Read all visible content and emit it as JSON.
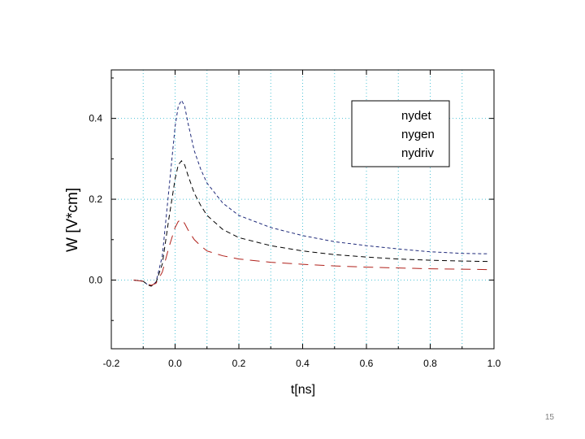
{
  "slide": {
    "page_number": "15"
  },
  "chart_data": {
    "type": "line",
    "title": "",
    "xlabel": "t[ns]",
    "ylabel": "W [V*cm]",
    "xlim": [
      -0.2,
      1.0
    ],
    "ylim": [
      -0.17,
      0.52
    ],
    "x_ticks": [
      "-0.2",
      "0.0",
      "0.2",
      "0.4",
      "0.6",
      "0.8",
      "1.0"
    ],
    "y_ticks": [
      "0.0",
      "0.2",
      "0.4"
    ],
    "x_tick_values": [
      -0.2,
      0.0,
      0.2,
      0.4,
      0.6,
      0.8,
      1.0
    ],
    "y_tick_values": [
      0.0,
      0.2,
      0.4
    ],
    "grid": true,
    "legend": {
      "placement": "top-right",
      "items": [
        "nydet",
        "nygen",
        "nydriv"
      ]
    },
    "colors": {
      "nydet": "#1f2a7a",
      "nygen": "#000000",
      "nydriv": "#b0201a",
      "grid": "#4fc3d6"
    },
    "series": [
      {
        "name": "nydet",
        "x": [
          -0.13,
          -0.1,
          -0.085,
          -0.075,
          -0.06,
          -0.04,
          -0.02,
          0.0,
          0.01,
          0.02,
          0.03,
          0.04,
          0.06,
          0.08,
          0.1,
          0.15,
          0.2,
          0.3,
          0.4,
          0.5,
          0.6,
          0.7,
          0.8,
          0.9,
          0.98
        ],
        "y": [
          0.0,
          -0.003,
          -0.012,
          -0.015,
          -0.005,
          0.06,
          0.22,
          0.38,
          0.43,
          0.445,
          0.43,
          0.39,
          0.32,
          0.275,
          0.24,
          0.19,
          0.16,
          0.13,
          0.11,
          0.095,
          0.085,
          0.077,
          0.07,
          0.066,
          0.065
        ]
      },
      {
        "name": "nygen",
        "x": [
          -0.13,
          -0.1,
          -0.085,
          -0.075,
          -0.06,
          -0.04,
          -0.02,
          0.0,
          0.01,
          0.02,
          0.03,
          0.04,
          0.06,
          0.08,
          0.1,
          0.15,
          0.2,
          0.3,
          0.4,
          0.5,
          0.6,
          0.7,
          0.8,
          0.9,
          0.98
        ],
        "y": [
          0.0,
          -0.003,
          -0.012,
          -0.015,
          -0.006,
          0.04,
          0.15,
          0.25,
          0.285,
          0.295,
          0.285,
          0.26,
          0.215,
          0.185,
          0.16,
          0.125,
          0.105,
          0.085,
          0.072,
          0.063,
          0.057,
          0.052,
          0.049,
          0.047,
          0.046
        ]
      },
      {
        "name": "nydriv",
        "x": [
          -0.13,
          -0.1,
          -0.085,
          -0.075,
          -0.06,
          -0.04,
          -0.02,
          0.0,
          0.01,
          0.02,
          0.03,
          0.04,
          0.06,
          0.08,
          0.1,
          0.15,
          0.2,
          0.3,
          0.4,
          0.5,
          0.6,
          0.7,
          0.8,
          0.9,
          0.98
        ],
        "y": [
          0.0,
          -0.003,
          -0.01,
          -0.013,
          -0.008,
          0.02,
          0.08,
          0.13,
          0.145,
          0.15,
          0.14,
          0.125,
          0.1,
          0.085,
          0.072,
          0.06,
          0.052,
          0.044,
          0.039,
          0.035,
          0.032,
          0.03,
          0.028,
          0.027,
          0.026
        ]
      }
    ]
  }
}
